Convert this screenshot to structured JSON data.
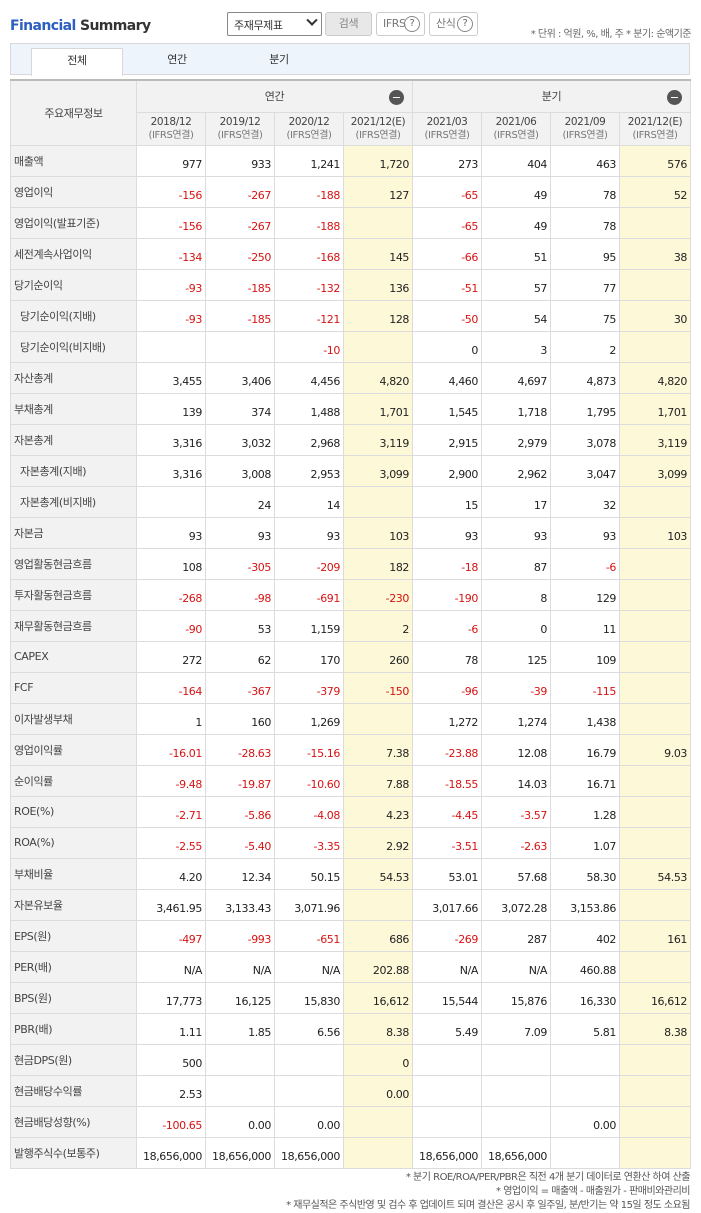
{
  "header": {
    "title_a": "Financial",
    "title_b": " Summary",
    "select_value": "주재무제표",
    "search_label": "검색",
    "ifrs_label": "IFRS",
    "calc_label": "산식",
    "help_glyph": "?",
    "notes": "* 단위 : 억원, %, 배, 주   * 분기: 순액기준"
  },
  "tabs": [
    "전체",
    "연간",
    "분기"
  ],
  "table": {
    "corner": "주요재무정보",
    "group_annual": "연간",
    "group_quarter": "분기",
    "periods": [
      {
        "label": "2018/12",
        "sub": "(IFRS연결)",
        "est": false
      },
      {
        "label": "2019/12",
        "sub": "(IFRS연결)",
        "est": false
      },
      {
        "label": "2020/12",
        "sub": "(IFRS연결)",
        "est": false
      },
      {
        "label": "2021/12(E)",
        "sub": "(IFRS연결)",
        "est": true
      },
      {
        "label": "2021/03",
        "sub": "(IFRS연결)",
        "est": false
      },
      {
        "label": "2021/06",
        "sub": "(IFRS연결)",
        "est": false
      },
      {
        "label": "2021/09",
        "sub": "(IFRS연결)",
        "est": false
      },
      {
        "label": "2021/12(E)",
        "sub": "(IFRS연결)",
        "est": true
      }
    ],
    "rows": [
      {
        "name": "매출액",
        "indent": false,
        "values": [
          "977",
          "933",
          "1,241",
          "1,720",
          "273",
          "404",
          "463",
          "576"
        ]
      },
      {
        "name": "영업이익",
        "indent": false,
        "values": [
          "-156",
          "-267",
          "-188",
          "127",
          "-65",
          "49",
          "78",
          "52"
        ]
      },
      {
        "name": "영업이익(발표기준)",
        "indent": false,
        "values": [
          "-156",
          "-267",
          "-188",
          "",
          "-65",
          "49",
          "78",
          ""
        ]
      },
      {
        "name": "세전계속사업이익",
        "indent": false,
        "values": [
          "-134",
          "-250",
          "-168",
          "145",
          "-66",
          "51",
          "95",
          "38"
        ]
      },
      {
        "name": "당기순이익",
        "indent": false,
        "values": [
          "-93",
          "-185",
          "-132",
          "136",
          "-51",
          "57",
          "77",
          ""
        ]
      },
      {
        "name": "당기순이익(지배)",
        "indent": true,
        "values": [
          "-93",
          "-185",
          "-121",
          "128",
          "-50",
          "54",
          "75",
          "30"
        ]
      },
      {
        "name": "당기순이익(비지배)",
        "indent": true,
        "values": [
          "",
          "",
          "-10",
          "",
          "0",
          "3",
          "2",
          ""
        ]
      },
      {
        "name": "자산총계",
        "indent": false,
        "values": [
          "3,455",
          "3,406",
          "4,456",
          "4,820",
          "4,460",
          "4,697",
          "4,873",
          "4,820"
        ]
      },
      {
        "name": "부채총계",
        "indent": false,
        "values": [
          "139",
          "374",
          "1,488",
          "1,701",
          "1,545",
          "1,718",
          "1,795",
          "1,701"
        ]
      },
      {
        "name": "자본총계",
        "indent": false,
        "values": [
          "3,316",
          "3,032",
          "2,968",
          "3,119",
          "2,915",
          "2,979",
          "3,078",
          "3,119"
        ]
      },
      {
        "name": "자본총계(지배)",
        "indent": true,
        "values": [
          "3,316",
          "3,008",
          "2,953",
          "3,099",
          "2,900",
          "2,962",
          "3,047",
          "3,099"
        ]
      },
      {
        "name": "자본총계(비지배)",
        "indent": true,
        "values": [
          "",
          "24",
          "14",
          "",
          "15",
          "17",
          "32",
          ""
        ]
      },
      {
        "name": "자본금",
        "indent": false,
        "values": [
          "93",
          "93",
          "93",
          "103",
          "93",
          "93",
          "93",
          "103"
        ]
      },
      {
        "name": "영업활동현금흐름",
        "indent": false,
        "values": [
          "108",
          "-305",
          "-209",
          "182",
          "-18",
          "87",
          "-6",
          ""
        ]
      },
      {
        "name": "투자활동현금흐름",
        "indent": false,
        "values": [
          "-268",
          "-98",
          "-691",
          "-230",
          "-190",
          "8",
          "129",
          ""
        ]
      },
      {
        "name": "재무활동현금흐름",
        "indent": false,
        "values": [
          "-90",
          "53",
          "1,159",
          "2",
          "-6",
          "0",
          "11",
          ""
        ]
      },
      {
        "name": "CAPEX",
        "indent": false,
        "values": [
          "272",
          "62",
          "170",
          "260",
          "78",
          "125",
          "109",
          ""
        ]
      },
      {
        "name": "FCF",
        "indent": false,
        "values": [
          "-164",
          "-367",
          "-379",
          "-150",
          "-96",
          "-39",
          "-115",
          ""
        ]
      },
      {
        "name": "이자발생부채",
        "indent": false,
        "values": [
          "1",
          "160",
          "1,269",
          "",
          "1,272",
          "1,274",
          "1,438",
          ""
        ]
      },
      {
        "name": "영업이익률",
        "indent": false,
        "values": [
          "-16.01",
          "-28.63",
          "-15.16",
          "7.38",
          "-23.88",
          "12.08",
          "16.79",
          "9.03"
        ]
      },
      {
        "name": "순이익률",
        "indent": false,
        "values": [
          "-9.48",
          "-19.87",
          "-10.60",
          "7.88",
          "-18.55",
          "14.03",
          "16.71",
          ""
        ]
      },
      {
        "name": "ROE(%)",
        "indent": false,
        "values": [
          "-2.71",
          "-5.86",
          "-4.08",
          "4.23",
          "-4.45",
          "-3.57",
          "1.28",
          ""
        ]
      },
      {
        "name": "ROA(%)",
        "indent": false,
        "values": [
          "-2.55",
          "-5.40",
          "-3.35",
          "2.92",
          "-3.51",
          "-2.63",
          "1.07",
          ""
        ]
      },
      {
        "name": "부채비율",
        "indent": false,
        "values": [
          "4.20",
          "12.34",
          "50.15",
          "54.53",
          "53.01",
          "57.68",
          "58.30",
          "54.53"
        ]
      },
      {
        "name": "자본유보율",
        "indent": false,
        "values": [
          "3,461.95",
          "3,133.43",
          "3,071.96",
          "",
          "3,017.66",
          "3,072.28",
          "3,153.86",
          ""
        ]
      },
      {
        "name": "EPS(원)",
        "indent": false,
        "values": [
          "-497",
          "-993",
          "-651",
          "686",
          "-269",
          "287",
          "402",
          "161"
        ]
      },
      {
        "name": "PER(배)",
        "indent": false,
        "values": [
          "N/A",
          "N/A",
          "N/A",
          "202.88",
          "N/A",
          "N/A",
          "460.88",
          ""
        ]
      },
      {
        "name": "BPS(원)",
        "indent": false,
        "values": [
          "17,773",
          "16,125",
          "15,830",
          "16,612",
          "15,544",
          "15,876",
          "16,330",
          "16,612"
        ]
      },
      {
        "name": "PBR(배)",
        "indent": false,
        "values": [
          "1.11",
          "1.85",
          "6.56",
          "8.38",
          "5.49",
          "7.09",
          "5.81",
          "8.38"
        ]
      },
      {
        "name": "현금DPS(원)",
        "indent": false,
        "values": [
          "500",
          "",
          "",
          "0",
          "",
          "",
          "",
          ""
        ]
      },
      {
        "name": "현금배당수익률",
        "indent": false,
        "values": [
          "2.53",
          "",
          "",
          "0.00",
          "",
          "",
          "",
          ""
        ]
      },
      {
        "name": "현금배당성향(%)",
        "indent": false,
        "values": [
          "-100.65",
          "0.00",
          "0.00",
          "",
          "",
          "",
          "0.00",
          ""
        ]
      },
      {
        "name": "발행주식수(보통주)",
        "indent": false,
        "values": [
          "18,656,000",
          "18,656,000",
          "18,656,000",
          "",
          "18,656,000",
          "18,656,000",
          "",
          ""
        ]
      }
    ]
  },
  "footnotes": [
    "* 분기 ROE/ROA/PER/PBR은 직전 4개 분기 데이터로 연환산 하여 산출",
    "* 영업이익 = 매출액 - 매출원가 - 판매비와관리비",
    "* 재무실적은 주식반영 및 검수 후 업데이트 되며 결산은 공시 후 일주일, 분/반기는 약 15일 정도 소요됨"
  ]
}
